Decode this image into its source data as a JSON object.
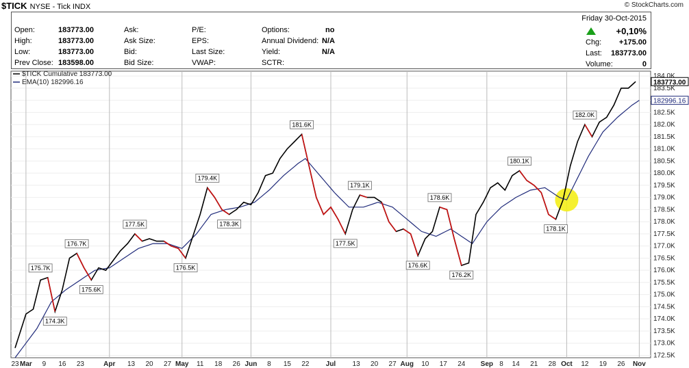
{
  "header": {
    "symbol": "$TICK",
    "exchange_name": "NYSE - Tick INDX",
    "copyright": "© StockCharts.com"
  },
  "quote": {
    "left": [
      {
        "label": "Open:",
        "value": "183773.00"
      },
      {
        "label": "High:",
        "value": "183773.00"
      },
      {
        "label": "Low:",
        "value": "183773.00"
      },
      {
        "label": "Prev Close:",
        "value": "183598.00"
      }
    ],
    "col2": [
      "Ask:",
      "Ask Size:",
      "Bid:",
      "Bid Size:"
    ],
    "col3": [
      "P/E:",
      "EPS:",
      "Last Size:",
      "VWAP:"
    ],
    "col4": [
      {
        "label": "Options:",
        "value": "no"
      },
      {
        "label": "Annual Dividend:",
        "value": "N/A"
      },
      {
        "label": "Yield:",
        "value": "N/A"
      },
      {
        "label": "SCTR:",
        "value": ""
      }
    ],
    "date": "Friday   30-Oct-2015",
    "change_pct": "+0,10%",
    "chg_label": "Chg:",
    "chg_value": "+175.00",
    "last_label": "Last:",
    "last_value": "183773.00",
    "volume_label": "Volume:",
    "volume_value": "0",
    "accent_up": "#1aa01a"
  },
  "chart_data": {
    "type": "line",
    "legend": [
      {
        "name": "$TICK Cumulative 183773.00",
        "color": "#000000"
      },
      {
        "name": "EMA(10) 182996.16",
        "color": "#1f2a7a"
      }
    ],
    "last_price_tag": "183773.00",
    "ema_tag": "182996.16",
    "ylim": [
      172.4,
      184.2
    ],
    "y_ticks": [
      172.5,
      173.0,
      173.5,
      174.0,
      174.5,
      175.0,
      175.5,
      176.0,
      176.5,
      177.0,
      177.5,
      178.0,
      178.5,
      179.0,
      179.5,
      180.0,
      180.5,
      181.0,
      181.5,
      182.0,
      182.5,
      183.0,
      183.5,
      184.0
    ],
    "y_tick_labels": [
      "172.5K",
      "173.0K",
      "173.5K",
      "174.0K",
      "174.5K",
      "175.0K",
      "175.5K",
      "176.0K",
      "176.5K",
      "177.0K",
      "177.5K",
      "178.0K",
      "178.5K",
      "179.0K",
      "179.5K",
      "180.0K",
      "180.5K",
      "181.0K",
      "181.5K",
      "182.0K",
      "182.5K",
      "183.0K",
      "183.5K",
      "184.0K"
    ],
    "x_tick_labels": [
      {
        "label": "23",
        "i": 0,
        "bold": false
      },
      {
        "label": "Mar",
        "i": 3,
        "bold": true
      },
      {
        "label": "9",
        "i": 8,
        "bold": false
      },
      {
        "label": "16",
        "i": 13,
        "bold": false
      },
      {
        "label": "23",
        "i": 18,
        "bold": false
      },
      {
        "label": "Apr",
        "i": 26,
        "bold": true
      },
      {
        "label": "13",
        "i": 32,
        "bold": false
      },
      {
        "label": "20",
        "i": 37,
        "bold": false
      },
      {
        "label": "27",
        "i": 42,
        "bold": false
      },
      {
        "label": "May",
        "i": 46,
        "bold": true
      },
      {
        "label": "11",
        "i": 51,
        "bold": false
      },
      {
        "label": "18",
        "i": 56,
        "bold": false
      },
      {
        "label": "26",
        "i": 61,
        "bold": false
      },
      {
        "label": "Jun",
        "i": 65,
        "bold": true
      },
      {
        "label": "8",
        "i": 70,
        "bold": false
      },
      {
        "label": "15",
        "i": 75,
        "bold": false
      },
      {
        "label": "22",
        "i": 80,
        "bold": false
      },
      {
        "label": "Jul",
        "i": 87,
        "bold": true
      },
      {
        "label": "13",
        "i": 94,
        "bold": false
      },
      {
        "label": "20",
        "i": 99,
        "bold": false
      },
      {
        "label": "27",
        "i": 104,
        "bold": false
      },
      {
        "label": "Aug",
        "i": 108,
        "bold": true
      },
      {
        "label": "10",
        "i": 113,
        "bold": false
      },
      {
        "label": "17",
        "i": 118,
        "bold": false
      },
      {
        "label": "24",
        "i": 123,
        "bold": false
      },
      {
        "label": "Sep",
        "i": 130,
        "bold": true
      },
      {
        "label": "8",
        "i": 134,
        "bold": false
      },
      {
        "label": "14",
        "i": 138,
        "bold": false
      },
      {
        "label": "21",
        "i": 143,
        "bold": false
      },
      {
        "label": "28",
        "i": 148,
        "bold": false
      },
      {
        "label": "Oct",
        "i": 152,
        "bold": true
      },
      {
        "label": "12",
        "i": 157,
        "bold": false
      },
      {
        "label": "19",
        "i": 162,
        "bold": false
      },
      {
        "label": "26",
        "i": 167,
        "bold": false
      },
      {
        "label": "Nov",
        "i": 172,
        "bold": true
      }
    ],
    "month_lines": [
      3,
      26,
      46,
      65,
      87,
      108,
      130,
      152,
      172
    ],
    "price_anchors": [
      [
        0,
        172.8
      ],
      [
        3,
        174.2
      ],
      [
        5,
        174.4
      ],
      [
        7,
        175.6
      ],
      [
        9,
        175.7
      ],
      [
        11,
        174.3
      ],
      [
        13,
        175.2
      ],
      [
        15,
        176.5
      ],
      [
        17,
        176.7
      ],
      [
        19,
        176.1
      ],
      [
        21,
        175.6
      ],
      [
        23,
        176.1
      ],
      [
        25,
        176.0
      ],
      [
        27,
        176.4
      ],
      [
        29,
        176.8
      ],
      [
        31,
        177.1
      ],
      [
        33,
        177.5
      ],
      [
        35,
        177.2
      ],
      [
        37,
        177.3
      ],
      [
        39,
        177.2
      ],
      [
        41,
        177.2
      ],
      [
        43,
        177.0
      ],
      [
        45,
        176.9
      ],
      [
        47,
        176.5
      ],
      [
        49,
        177.4
      ],
      [
        51,
        178.3
      ],
      [
        53,
        179.4
      ],
      [
        55,
        179.0
      ],
      [
        57,
        178.5
      ],
      [
        59,
        178.3
      ],
      [
        61,
        178.5
      ],
      [
        63,
        178.8
      ],
      [
        65,
        178.7
      ],
      [
        67,
        179.2
      ],
      [
        69,
        179.9
      ],
      [
        71,
        180.0
      ],
      [
        73,
        180.6
      ],
      [
        75,
        181.0
      ],
      [
        77,
        181.3
      ],
      [
        79,
        181.6
      ],
      [
        81,
        180.3
      ],
      [
        83,
        179.0
      ],
      [
        85,
        178.3
      ],
      [
        87,
        178.6
      ],
      [
        89,
        178.1
      ],
      [
        91,
        177.5
      ],
      [
        93,
        178.5
      ],
      [
        95,
        179.1
      ],
      [
        97,
        179.0
      ],
      [
        99,
        179.0
      ],
      [
        101,
        178.8
      ],
      [
        103,
        178.0
      ],
      [
        105,
        177.6
      ],
      [
        107,
        177.7
      ],
      [
        109,
        177.5
      ],
      [
        111,
        176.6
      ],
      [
        113,
        177.3
      ],
      [
        115,
        177.6
      ],
      [
        117,
        178.6
      ],
      [
        119,
        178.5
      ],
      [
        121,
        177.3
      ],
      [
        123,
        176.2
      ],
      [
        125,
        176.3
      ],
      [
        127,
        178.3
      ],
      [
        129,
        178.8
      ],
      [
        131,
        179.4
      ],
      [
        133,
        179.6
      ],
      [
        135,
        179.3
      ],
      [
        137,
        179.9
      ],
      [
        139,
        180.1
      ],
      [
        141,
        179.7
      ],
      [
        143,
        179.5
      ],
      [
        145,
        179.2
      ],
      [
        147,
        178.3
      ],
      [
        149,
        178.1
      ],
      [
        151,
        178.9
      ],
      [
        153,
        180.3
      ],
      [
        155,
        181.3
      ],
      [
        157,
        182.0
      ],
      [
        159,
        181.5
      ],
      [
        161,
        182.1
      ],
      [
        163,
        182.3
      ],
      [
        165,
        182.8
      ],
      [
        167,
        183.5
      ],
      [
        169,
        183.5
      ],
      [
        171,
        183.77
      ]
    ],
    "down_segments": [
      [
        9,
        11
      ],
      [
        17,
        21
      ],
      [
        33,
        35
      ],
      [
        41,
        47
      ],
      [
        53,
        59
      ],
      [
        79,
        91
      ],
      [
        95,
        97
      ],
      [
        101,
        105
      ],
      [
        107,
        111
      ],
      [
        117,
        123
      ],
      [
        139,
        149
      ],
      [
        157,
        159
      ]
    ],
    "ema_anchors": [
      [
        0,
        172.4
      ],
      [
        6,
        173.6
      ],
      [
        10,
        174.7
      ],
      [
        14,
        175.2
      ],
      [
        18,
        175.6
      ],
      [
        22,
        176.0
      ],
      [
        26,
        176.1
      ],
      [
        30,
        176.5
      ],
      [
        34,
        176.9
      ],
      [
        38,
        177.1
      ],
      [
        42,
        177.1
      ],
      [
        46,
        176.9
      ],
      [
        50,
        177.5
      ],
      [
        54,
        178.3
      ],
      [
        58,
        178.5
      ],
      [
        62,
        178.6
      ],
      [
        66,
        178.8
      ],
      [
        70,
        179.3
      ],
      [
        74,
        179.9
      ],
      [
        78,
        180.4
      ],
      [
        80,
        180.6
      ],
      [
        84,
        179.9
      ],
      [
        88,
        179.2
      ],
      [
        92,
        178.6
      ],
      [
        96,
        178.6
      ],
      [
        100,
        178.8
      ],
      [
        104,
        178.6
      ],
      [
        108,
        178.1
      ],
      [
        112,
        177.6
      ],
      [
        116,
        177.4
      ],
      [
        120,
        177.7
      ],
      [
        124,
        177.3
      ],
      [
        126,
        177.1
      ],
      [
        130,
        178.0
      ],
      [
        134,
        178.6
      ],
      [
        138,
        179.0
      ],
      [
        142,
        179.3
      ],
      [
        146,
        179.4
      ],
      [
        150,
        179.0
      ],
      [
        152,
        178.9
      ],
      [
        154,
        179.5
      ],
      [
        158,
        180.7
      ],
      [
        162,
        181.7
      ],
      [
        166,
        182.3
      ],
      [
        170,
        182.8
      ],
      [
        172,
        183.0
      ]
    ],
    "callouts": [
      {
        "label": "175.7K",
        "i": 7,
        "v": 175.7,
        "pos": "above"
      },
      {
        "label": "174.3K",
        "i": 11,
        "v": 174.3,
        "pos": "below"
      },
      {
        "label": "176.7K",
        "i": 17,
        "v": 176.7,
        "pos": "above"
      },
      {
        "label": "175.6K",
        "i": 21,
        "v": 175.6,
        "pos": "below"
      },
      {
        "label": "177.5K",
        "i": 33,
        "v": 177.5,
        "pos": "above"
      },
      {
        "label": "176.5K",
        "i": 47,
        "v": 176.5,
        "pos": "below"
      },
      {
        "label": "179.4K",
        "i": 53,
        "v": 179.4,
        "pos": "above"
      },
      {
        "label": "178.3K",
        "i": 59,
        "v": 178.3,
        "pos": "below"
      },
      {
        "label": "181.6K",
        "i": 79,
        "v": 181.6,
        "pos": "above"
      },
      {
        "label": "177.5K",
        "i": 91,
        "v": 177.5,
        "pos": "below"
      },
      {
        "label": "179.1K",
        "i": 95,
        "v": 179.1,
        "pos": "above"
      },
      {
        "label": "176.6K",
        "i": 111,
        "v": 176.6,
        "pos": "below"
      },
      {
        "label": "178.6K",
        "i": 117,
        "v": 178.6,
        "pos": "above"
      },
      {
        "label": "176.2K",
        "i": 123,
        "v": 176.2,
        "pos": "below"
      },
      {
        "label": "180.1K",
        "i": 139,
        "v": 180.1,
        "pos": "above"
      },
      {
        "label": "178.1K",
        "i": 149,
        "v": 178.1,
        "pos": "below"
      },
      {
        "label": "182.0K",
        "i": 157,
        "v": 182.0,
        "pos": "above"
      }
    ],
    "highlight": {
      "i": 152,
      "v": 178.9,
      "color": "#f4ee1a"
    },
    "grid": true
  }
}
